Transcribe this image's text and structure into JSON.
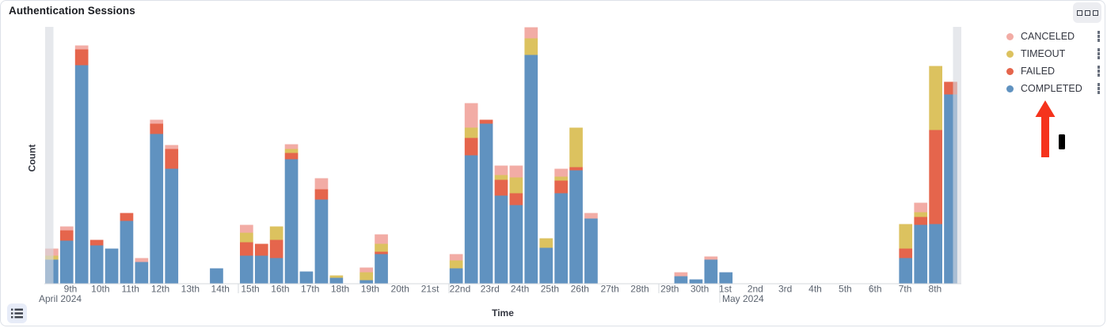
{
  "panel": {
    "title": "Authentication Sessions"
  },
  "panel_options": {
    "icon": "boxes-horizontal"
  },
  "legend": {
    "items": [
      {
        "label": "CANCELED",
        "color": "#F2ACA5"
      },
      {
        "label": "TIMEOUT",
        "color": "#DCC25F"
      },
      {
        "label": "FAILED",
        "color": "#E5654C"
      },
      {
        "label": "COMPLETED",
        "color": "#6092C0"
      }
    ],
    "item_action_icon": "vertical-boxes"
  },
  "axes": {
    "y_title": "Count",
    "x_title": "Time"
  },
  "legend_toggle": {
    "icon": "list"
  },
  "annotations": {
    "arrow": {
      "color": "#F5331C",
      "points_to": "COMPLETED legend item"
    },
    "cursor": {
      "color": "#000000"
    }
  },
  "chart_data": {
    "type": "bar",
    "subtype": "stacked-time-histogram",
    "title": "Authentication Sessions",
    "xlabel": "Time",
    "ylabel": "Count",
    "bucket_interval": "12h",
    "y_axis_tick_labels": "none shown (unlabeled axis, relative units)",
    "ylim": [
      0,
      324
    ],
    "legend_position": "right",
    "grid": "off",
    "stack_order_bottom_to_top": [
      "COMPLETED",
      "FAILED",
      "TIMEOUT",
      "CANCELED"
    ],
    "series_colors": {
      "COMPLETED": "#6092C0",
      "FAILED": "#E5654C",
      "TIMEOUT": "#DCC25F",
      "CANCELED": "#F2ACA5"
    },
    "x_axis": {
      "april_label": "April 2024",
      "may_label": "May 2024",
      "april_days": [
        "9th",
        "10th",
        "11th",
        "12th",
        "13th",
        "14th",
        "15th",
        "16th",
        "17th",
        "18th",
        "19th",
        "20th",
        "21st",
        "22nd",
        "23rd",
        "24th",
        "25th",
        "26th",
        "27th",
        "28th",
        "29th",
        "30th"
      ],
      "may_days": [
        "1st",
        "2nd",
        "3rd",
        "4th",
        "5th",
        "6th",
        "7th",
        "8th"
      ]
    },
    "partial_bucket_markers": [
      "left-edge grey band (Apr 8 PM)",
      "right-edge grey band (May 8 PM)"
    ],
    "buckets": [
      {
        "i": 0,
        "time": "Apr 8 PM",
        "COMPLETED": 30,
        "TIMEOUT": 5,
        "CANCELED": 9
      },
      {
        "i": 1,
        "time": "Apr 9 AM",
        "COMPLETED": 54,
        "FAILED": 13,
        "CANCELED": 5
      },
      {
        "i": 2,
        "time": "Apr 9 PM",
        "COMPLETED": 276,
        "FAILED": 20,
        "CANCELED": 5
      },
      {
        "i": 3,
        "time": "Apr 10 AM",
        "COMPLETED": 48,
        "FAILED": 7
      },
      {
        "i": 4,
        "time": "Apr 10 PM",
        "COMPLETED": 44
      },
      {
        "i": 5,
        "time": "Apr 11 AM",
        "COMPLETED": 79,
        "FAILED": 10
      },
      {
        "i": 6,
        "time": "Apr 11 PM",
        "COMPLETED": 27,
        "CANCELED": 5
      },
      {
        "i": 7,
        "time": "Apr 12 AM",
        "COMPLETED": 189,
        "FAILED": 13,
        "CANCELED": 5
      },
      {
        "i": 8,
        "time": "Apr 12 PM",
        "COMPLETED": 145,
        "FAILED": 25,
        "CANCELED": 5
      },
      {
        "i": 11,
        "time": "Apr 14 AM",
        "COMPLETED": 19
      },
      {
        "i": 13,
        "time": "Apr 15 AM",
        "COMPLETED": 35,
        "FAILED": 17,
        "TIMEOUT": 12,
        "CANCELED": 10
      },
      {
        "i": 14,
        "time": "Apr 15 PM",
        "COMPLETED": 35,
        "FAILED": 15
      },
      {
        "i": 15,
        "time": "Apr 16 AM",
        "COMPLETED": 32,
        "FAILED": 23,
        "TIMEOUT": 17
      },
      {
        "i": 16,
        "time": "Apr 16 PM",
        "COMPLETED": 157,
        "FAILED": 8,
        "TIMEOUT": 5,
        "CANCELED": 6
      },
      {
        "i": 17,
        "time": "Apr 17 AM",
        "COMPLETED": 15
      },
      {
        "i": 18,
        "time": "Apr 17 PM",
        "COMPLETED": 106,
        "FAILED": 13,
        "CANCELED": 14
      },
      {
        "i": 19,
        "time": "Apr 18 AM",
        "COMPLETED": 7,
        "TIMEOUT": 3
      },
      {
        "i": 21,
        "time": "Apr 19 AM",
        "COMPLETED": 4,
        "TIMEOUT": 10,
        "CANCELED": 6
      },
      {
        "i": 22,
        "time": "Apr 19 PM",
        "COMPLETED": 37,
        "FAILED": 3,
        "TIMEOUT": 10,
        "CANCELED": 12
      },
      {
        "i": 27,
        "time": "Apr 22 AM",
        "COMPLETED": 19,
        "TIMEOUT": 10,
        "CANCELED": 8
      },
      {
        "i": 28,
        "time": "Apr 22 PM",
        "COMPLETED": 162,
        "FAILED": 22,
        "TIMEOUT": 13,
        "CANCELED": 31
      },
      {
        "i": 29,
        "time": "Apr 23 AM",
        "COMPLETED": 202,
        "FAILED": 5
      },
      {
        "i": 30,
        "time": "Apr 23 PM",
        "COMPLETED": 111,
        "FAILED": 20,
        "TIMEOUT": 6,
        "CANCELED": 12
      },
      {
        "i": 31,
        "time": "Apr 24 AM",
        "COMPLETED": 99,
        "FAILED": 15,
        "TIMEOUT": 20,
        "CANCELED": 15
      },
      {
        "i": 32,
        "time": "Apr 24 PM",
        "COMPLETED": 289,
        "TIMEOUT": 21,
        "CANCELED": 14
      },
      {
        "i": 33,
        "time": "Apr 25 AM",
        "COMPLETED": 45,
        "TIMEOUT": 12
      },
      {
        "i": 34,
        "time": "Apr 25 PM",
        "COMPLETED": 114,
        "FAILED": 16,
        "TIMEOUT": 5,
        "CANCELED": 10
      },
      {
        "i": 35,
        "time": "Apr 26 AM",
        "COMPLETED": 143,
        "FAILED": 4,
        "TIMEOUT": 50
      },
      {
        "i": 36,
        "time": "Apr 26 PM",
        "COMPLETED": 82,
        "CANCELED": 7
      },
      {
        "i": 42,
        "time": "Apr 29 PM",
        "COMPLETED": 9,
        "CANCELED": 5
      },
      {
        "i": 43,
        "time": "Apr 30 AM",
        "COMPLETED": 5
      },
      {
        "i": 44,
        "time": "Apr 30 PM",
        "COMPLETED": 30,
        "CANCELED": 4
      },
      {
        "i": 45,
        "time": "May 1 AM",
        "COMPLETED": 14
      },
      {
        "i": 57,
        "time": "May 7 AM",
        "COMPLETED": 32,
        "FAILED": 12,
        "TIMEOUT": 31
      },
      {
        "i": 58,
        "time": "May 7 PM",
        "COMPLETED": 74,
        "FAILED": 10,
        "TIMEOUT": 6,
        "CANCELED": 12
      },
      {
        "i": 59,
        "time": "May 8 AM",
        "COMPLETED": 75,
        "FAILED": 119,
        "TIMEOUT": 81
      },
      {
        "i": 60,
        "time": "May 8 PM",
        "COMPLETED": 239,
        "FAILED": 16
      }
    ]
  }
}
